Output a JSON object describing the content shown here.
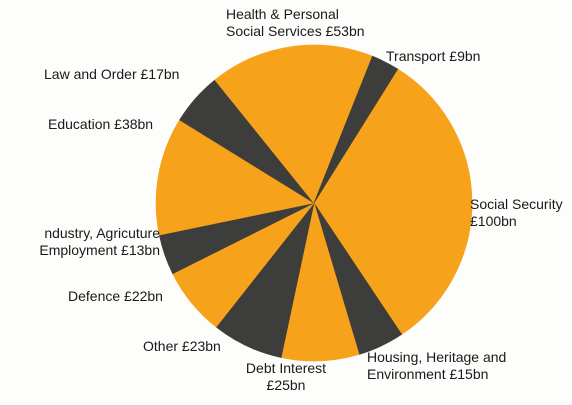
{
  "chart_data": {
    "type": "pie",
    "start_angle_deg": 32,
    "direction": "clockwise",
    "slices": [
      {
        "label_lines": [
          "Social Security",
          "£100bn"
        ],
        "value": 100,
        "color": "#f7a21b"
      },
      {
        "label_lines": [
          "Housing, Heritage and",
          "Environment £15bn"
        ],
        "value": 15,
        "color": "#3d3d3b"
      },
      {
        "label_lines": [
          "Debt Interest",
          "£25bn"
        ],
        "value": 25,
        "color": "#f7a21b"
      },
      {
        "label_lines": [
          "Other £23bn"
        ],
        "value": 23,
        "color": "#3d3d3b"
      },
      {
        "label_lines": [
          "Defence £22bn"
        ],
        "value": 22,
        "color": "#f7a21b"
      },
      {
        "label_lines": [
          "ndustry, Agricuture",
          "Employment £13bn"
        ],
        "value": 13,
        "color": "#3d3d3b"
      },
      {
        "label_lines": [
          "Education £38bn"
        ],
        "value": 38,
        "color": "#f7a21b"
      },
      {
        "label_lines": [
          "Law and Order £17bn"
        ],
        "value": 17,
        "color": "#3d3d3b"
      },
      {
        "label_lines": [
          "Health & Personal",
          "Social Services £53bn"
        ],
        "value": 53,
        "color": "#f7a21b"
      },
      {
        "label_lines": [
          "Transport £9bn"
        ],
        "value": 9,
        "color": "#3d3d3b"
      }
    ]
  }
}
